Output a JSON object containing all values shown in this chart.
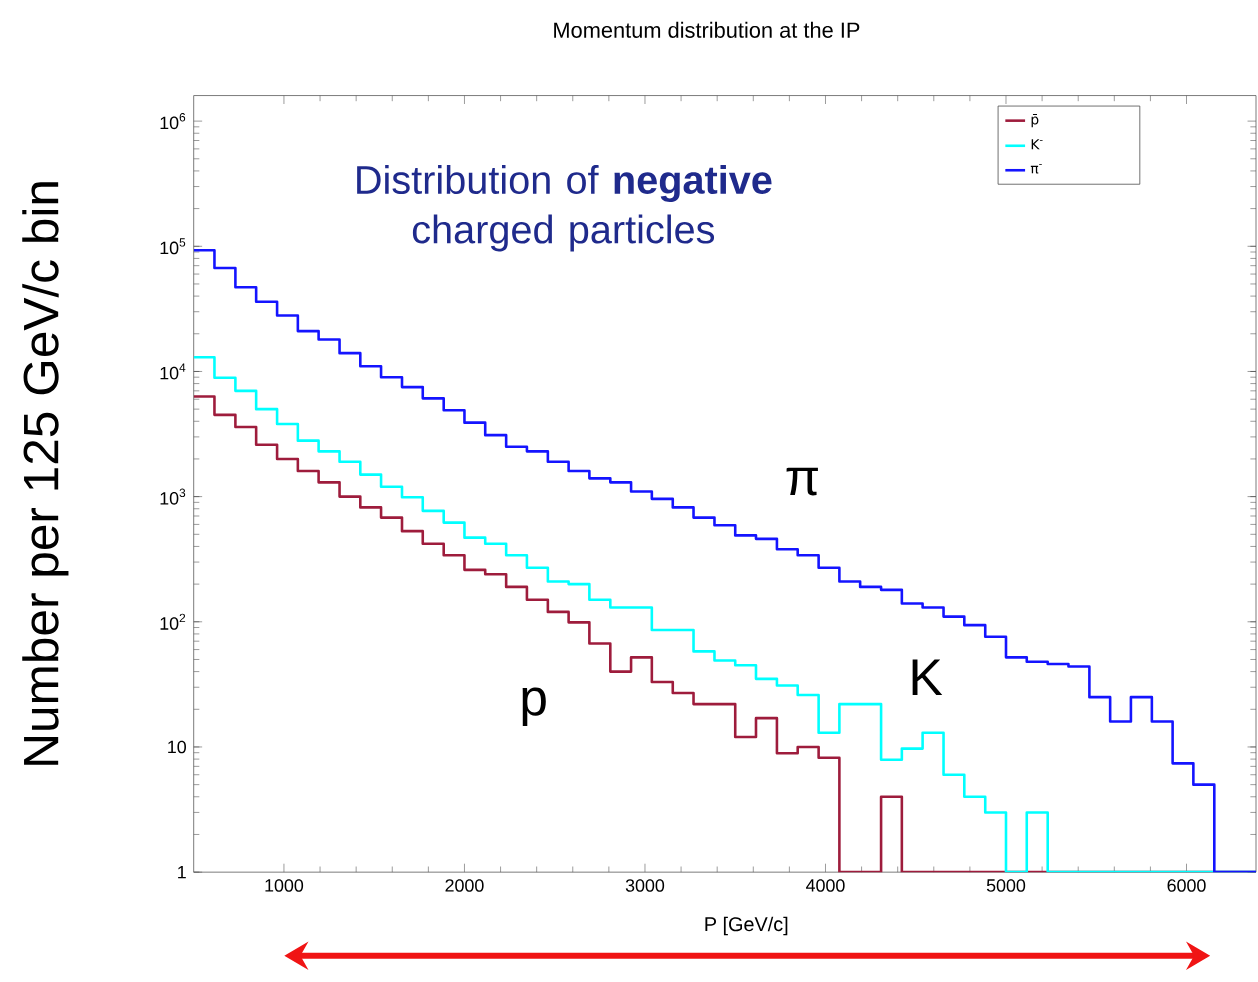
{
  "chart_data": {
    "type": "histogram",
    "title": "Momentum distribution at the IP",
    "xlabel": "P [GeV/c]",
    "ylabel": "Number per 125 GeV/c bin",
    "bins": [
      500,
      615,
      731,
      846,
      962,
      1077,
      1192,
      1308,
      1423,
      1538,
      1654,
      1769,
      1885,
      2000,
      2115,
      2231,
      2346,
      2462,
      2577,
      2692,
      2808,
      2923,
      3038,
      3154,
      3269,
      3385,
      3500,
      3615,
      3731,
      3846,
      3962,
      4077,
      4192,
      4308,
      4423,
      4538,
      4654,
      4769,
      4885,
      5000,
      5115,
      5231,
      5346,
      5462,
      5577,
      5692,
      5808,
      5923,
      6038,
      6154,
      6269,
      6385
    ],
    "series": [
      {
        "name": "p̄",
        "color": "#9e1c3c",
        "values": [
          6300,
          4500,
          3600,
          2600,
          2000,
          1600,
          1300,
          1000,
          820,
          680,
          530,
          420,
          340,
          260,
          240,
          190,
          150,
          120,
          99,
          67,
          40,
          52,
          33,
          27,
          22,
          22,
          12,
          17,
          8.9,
          10,
          8.2,
          null,
          null,
          4,
          null,
          null,
          null,
          null,
          null,
          null,
          null,
          null,
          null,
          null,
          null,
          null,
          null,
          null,
          null,
          null,
          null
        ]
      },
      {
        "name": "K$^{-}$",
        "color": "#00ffff",
        "values": [
          13000,
          8900,
          7000,
          5000,
          3800,
          2800,
          2300,
          1900,
          1500,
          1200,
          990,
          770,
          620,
          470,
          420,
          340,
          270,
          210,
          200,
          150,
          130,
          130,
          86,
          86,
          58,
          49,
          45,
          35,
          31,
          26,
          13,
          22,
          22,
          7.9,
          9.7,
          13,
          6,
          4,
          3,
          null,
          3,
          null,
          null,
          null,
          null,
          null,
          null,
          null,
          null,
          null,
          null
        ]
      },
      {
        "name": "π$^{-}$",
        "color": "#1414ff",
        "values": [
          93000,
          67000,
          47000,
          36000,
          28000,
          21000,
          18000,
          14000,
          11000,
          9000,
          7500,
          6100,
          4900,
          3900,
          3100,
          2500,
          2300,
          1900,
          1600,
          1400,
          1300,
          1100,
          960,
          820,
          680,
          590,
          490,
          460,
          380,
          340,
          270,
          210,
          190,
          180,
          140,
          130,
          110,
          94,
          76,
          52,
          48,
          46,
          44,
          25,
          16,
          25,
          16,
          7.4,
          5.0,
          null,
          null
        ]
      }
    ],
    "xlim": [
      500,
      6385
    ],
    "ylim": [
      1,
      1600000
    ],
    "xticks": [
      1000,
      2000,
      3000,
      4000,
      5000,
      6000
    ],
    "yticks": [
      {
        "value": 1,
        "label": "1"
      },
      {
        "value": 10,
        "label": "10"
      },
      {
        "value": 100,
        "label": "10$^{2}$"
      },
      {
        "value": 1000,
        "label": "10$^{3}$"
      },
      {
        "value": 10000,
        "label": "10$^{4}$"
      },
      {
        "value": 100000,
        "label": "10$^{5}$"
      },
      {
        "value": 1000000,
        "label": "10$^{6}$"
      }
    ],
    "log": true,
    "legend": "top right",
    "annotations": [
      "Distribution of **negative** charged particles",
      "π",
      "K",
      "p"
    ]
  }
}
